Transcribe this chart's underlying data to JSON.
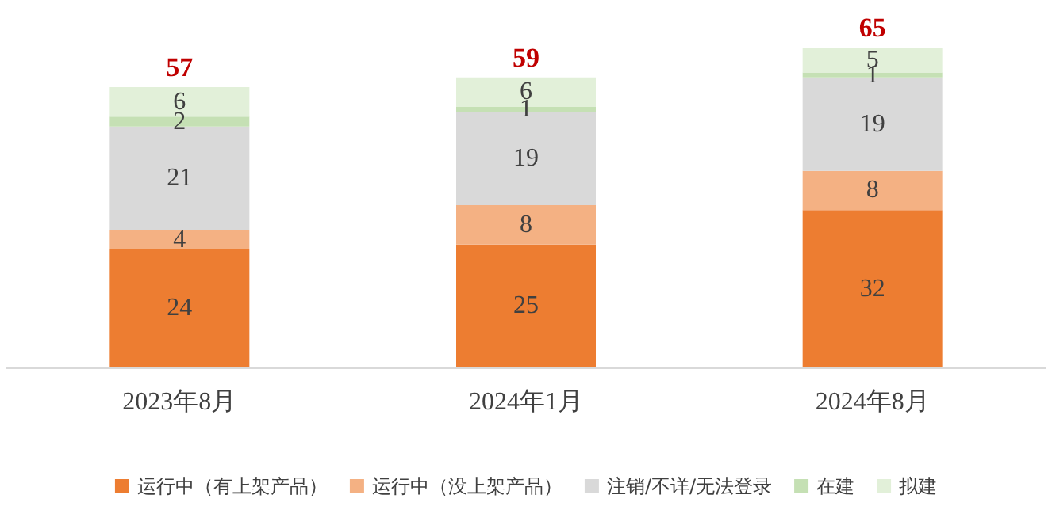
{
  "chart_data": {
    "type": "bar",
    "stacked": true,
    "data_labels": true,
    "legend": "bottom",
    "categories": [
      "2023年8月",
      "2024年1月",
      "2024年8月"
    ],
    "series": [
      {
        "name": "运行中（有上架产品）",
        "color": "#ed7d31",
        "values": [
          24,
          25,
          32
        ]
      },
      {
        "name": "运行中（没上架产品）",
        "color": "#f4b183",
        "values": [
          4,
          8,
          8
        ]
      },
      {
        "name": "注销/不详/无法登录",
        "color": "#d9d9d9",
        "values": [
          21,
          19,
          19
        ]
      },
      {
        "name": "在建",
        "color": "#c5e0b4",
        "values": [
          2,
          1,
          1
        ]
      },
      {
        "name": "拟建",
        "color": "#e2f0d9",
        "values": [
          6,
          6,
          5
        ]
      }
    ],
    "totals": [
      "57",
      "59",
      "65"
    ]
  }
}
